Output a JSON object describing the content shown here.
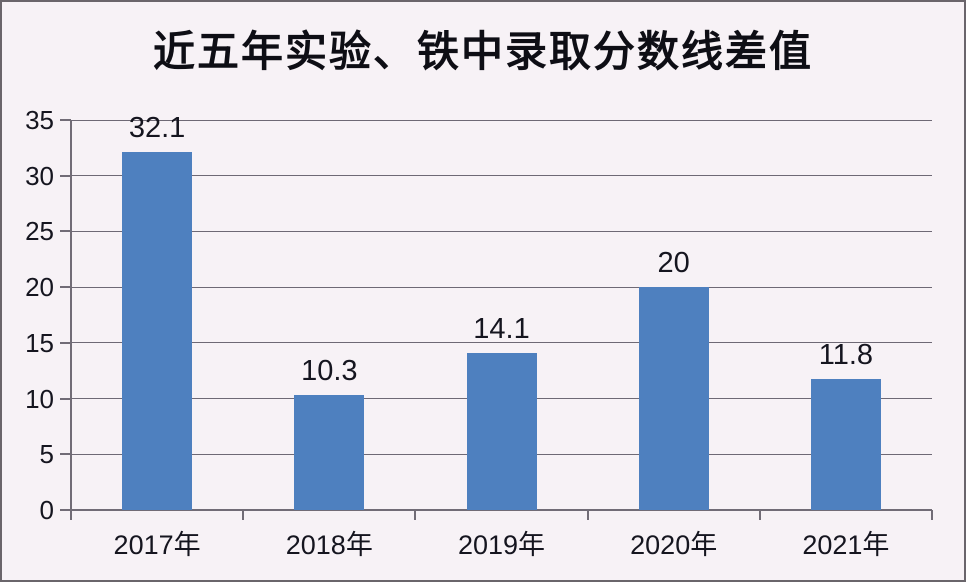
{
  "chart_data": {
    "type": "bar",
    "title": "近五年实验、铁中录取分数线差值",
    "categories": [
      "2017年",
      "2018年",
      "2019年",
      "2020年",
      "2021年"
    ],
    "values": [
      32.1,
      10.3,
      14.1,
      20,
      11.8
    ],
    "data_labels": [
      "32.1",
      "10.3",
      "14.1",
      "20",
      "11.8"
    ],
    "xlabel": "",
    "ylabel": "",
    "ylim": [
      0,
      35
    ],
    "yticks": [
      0,
      5,
      10,
      15,
      20,
      25,
      30,
      35
    ],
    "grid": "horizontal",
    "legend": "none",
    "colors": {
      "bar": "#4e80bf",
      "background": "#f7f2f6",
      "grid": "#6e6975",
      "axis": "#716c76",
      "text": "#15151f",
      "title": "#0e0e15",
      "frame": "#6a656b"
    }
  }
}
